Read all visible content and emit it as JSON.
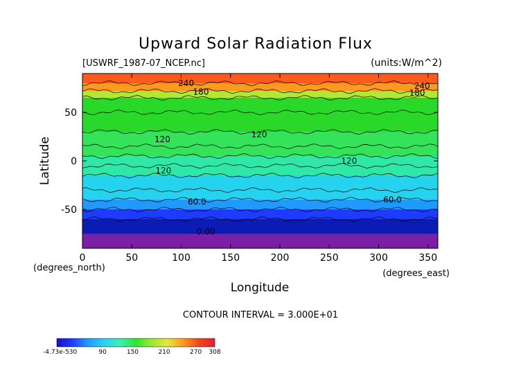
{
  "chart_data": {
    "type": "heatmap",
    "title": "Upward Solar Radiation Flux",
    "file_label": "[USWRF_1987-07_NCEP.nc]",
    "units_label": "(units:W/m^2)",
    "xlabel": "Longitude",
    "ylabel": "Latitude",
    "x_unit_label": "(degrees_east)",
    "y_unit_label": "(degrees_north)",
    "xlim": [
      0,
      360
    ],
    "ylim": [
      -90,
      90
    ],
    "x_ticks": [
      0,
      50,
      100,
      150,
      200,
      250,
      300,
      350
    ],
    "y_ticks": [
      50,
      0,
      -50
    ],
    "contour_interval_text": "CONTOUR INTERVAL = 3.000E+01",
    "contour_labels": [
      {
        "text": "240",
        "x": 105,
        "y": 80
      },
      {
        "text": "180",
        "x": 120,
        "y": 71
      },
      {
        "text": "240",
        "x": 344,
        "y": 77
      },
      {
        "text": "180",
        "x": 339,
        "y": 70
      },
      {
        "text": "120",
        "x": 179,
        "y": 27
      },
      {
        "text": "120",
        "x": 81,
        "y": 22
      },
      {
        "text": "120",
        "x": 270,
        "y": 0
      },
      {
        "text": "120",
        "x": 82,
        "y": -10
      },
      {
        "text": "60.0",
        "x": 116,
        "y": -42
      },
      {
        "text": "60.0",
        "x": 314,
        "y": -40
      },
      {
        "text": "0.00",
        "x": 125,
        "y": -73
      }
    ],
    "latitude_profile": [
      {
        "lat": 90,
        "value": 250
      },
      {
        "lat": 80,
        "value": 240
      },
      {
        "lat": 72,
        "value": 190
      },
      {
        "lat": 65,
        "value": 165
      },
      {
        "lat": 50,
        "value": 150
      },
      {
        "lat": 30,
        "value": 140
      },
      {
        "lat": 15,
        "value": 130
      },
      {
        "lat": 5,
        "value": 120
      },
      {
        "lat": -5,
        "value": 112
      },
      {
        "lat": -15,
        "value": 95
      },
      {
        "lat": -30,
        "value": 90
      },
      {
        "lat": -40,
        "value": 70
      },
      {
        "lat": -50,
        "value": 55
      },
      {
        "lat": -60,
        "value": 30
      },
      {
        "lat": -75,
        "value": 5
      },
      {
        "lat": -90,
        "value": 0
      }
    ],
    "colorbar": {
      "min_label": "-4.73e-530",
      "tick_labels": [
        "90",
        "150",
        "210",
        "270",
        "308"
      ],
      "stops": [
        "#1b0ec8",
        "#1e3cff",
        "#1ea0ff",
        "#28d2f0",
        "#3cf0b4",
        "#2ee62e",
        "#a0e632",
        "#e6e63c",
        "#ff9a1e",
        "#f0461e",
        "#e61e32"
      ]
    }
  },
  "band_colors": [
    "#7b1fa8",
    "#0c1bb4",
    "#1e3cff",
    "#1f9aff",
    "#26d3ee",
    "#2fe8a8",
    "#35e35a",
    "#2ad82a",
    "#b4e632",
    "#f0e03c",
    "#ff9a1e",
    "#ff5a1e",
    "#ee2a2a"
  ]
}
